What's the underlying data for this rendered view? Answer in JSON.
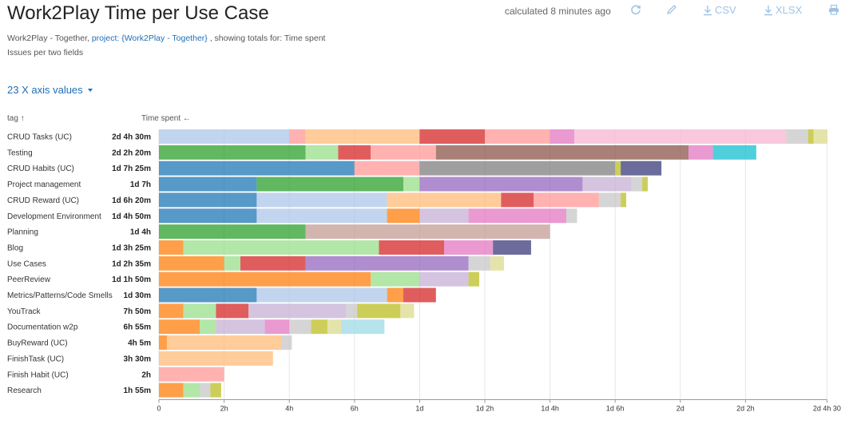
{
  "header": {
    "title": "Work2Play Time per Use Case",
    "calculated": "calculated 8 minutes ago",
    "csv_label": "CSV",
    "xlsx_label": "XLSX"
  },
  "meta": {
    "line1_prefix": "Work2Play - Together, ",
    "line1_link": "project: {Work2Play - Together}",
    "line1_suffix": " , showing totals for: Time spent",
    "line2": "Issues per two fields"
  },
  "axis_values_label": "23 X axis values",
  "columns": {
    "tag": "tag ↑",
    "time": "Time spent ←"
  },
  "icons": [
    "refresh-icon",
    "pencil-icon",
    "download-icon",
    "download-icon",
    "print-icon"
  ],
  "chart_data": {
    "type": "bar",
    "orientation": "horizontal",
    "stacked": true,
    "x_unit": "hours (1d = 8h)",
    "xlim": [
      0,
      20.5
    ],
    "x_ticks": [
      {
        "value": 0,
        "label": "0"
      },
      {
        "value": 2,
        "label": "2h"
      },
      {
        "value": 4,
        "label": "4h"
      },
      {
        "value": 6,
        "label": "6h"
      },
      {
        "value": 8,
        "label": "1d"
      },
      {
        "value": 10,
        "label": "1d 2h"
      },
      {
        "value": 12,
        "label": "1d 4h"
      },
      {
        "value": 14,
        "label": "1d 6h"
      },
      {
        "value": 16,
        "label": "2d"
      },
      {
        "value": 18,
        "label": "2d 2h"
      },
      {
        "value": 20.5,
        "label": "2d 4h 30"
      }
    ],
    "grid": true,
    "rows": [
      {
        "label": "CRUD Tasks (UC)",
        "total": "2d 4h 30m",
        "segments": [
          {
            "value": 4.0,
            "color": "#aec7e8"
          },
          {
            "value": 0.5,
            "color": "#ff9896"
          },
          {
            "value": 3.5,
            "color": "#ffbb78"
          },
          {
            "value": 2.0,
            "color": "#d62728"
          },
          {
            "value": 2.0,
            "color": "#ff9896"
          },
          {
            "value": 0.75,
            "color": "#e377c2"
          },
          {
            "value": 6.5,
            "color": "#f7b6d2"
          },
          {
            "value": 0.67,
            "color": "#c7c7c7"
          },
          {
            "value": 0.17,
            "color": "#bcbd22"
          },
          {
            "value": 0.42,
            "color": "#dbdb8d"
          }
        ]
      },
      {
        "label": "Testing",
        "total": "2d 2h 20m",
        "segments": [
          {
            "value": 4.5,
            "color": "#2ca02c"
          },
          {
            "value": 1.0,
            "color": "#98df8a"
          },
          {
            "value": 1.0,
            "color": "#d62728"
          },
          {
            "value": 2.0,
            "color": "#ff9896"
          },
          {
            "value": 7.75,
            "color": "#8c564b"
          },
          {
            "value": 0.75,
            "color": "#e377c2"
          },
          {
            "value": 1.33,
            "color": "#17becf"
          }
        ]
      },
      {
        "label": "CRUD Habits (UC)",
        "total": "1d 7h 25m",
        "segments": [
          {
            "value": 6.0,
            "color": "#1f77b4"
          },
          {
            "value": 2.0,
            "color": "#ff9896"
          },
          {
            "value": 6.0,
            "color": "#7f7f7f"
          },
          {
            "value": 0.17,
            "color": "#bcbd22"
          },
          {
            "value": 1.25,
            "color": "#393b79"
          }
        ]
      },
      {
        "label": "Project management",
        "total": "1d 7h",
        "segments": [
          {
            "value": 3.0,
            "color": "#1f77b4"
          },
          {
            "value": 4.5,
            "color": "#2ca02c"
          },
          {
            "value": 0.5,
            "color": "#98df8a"
          },
          {
            "value": 5.0,
            "color": "#9467bd"
          },
          {
            "value": 1.5,
            "color": "#c5b0d5"
          },
          {
            "value": 0.33,
            "color": "#c7c7c7"
          },
          {
            "value": 0.17,
            "color": "#bcbd22"
          }
        ]
      },
      {
        "label": "CRUD Reward (UC)",
        "total": "1d 6h 20m",
        "segments": [
          {
            "value": 3.0,
            "color": "#1f77b4"
          },
          {
            "value": 4.0,
            "color": "#aec7e8"
          },
          {
            "value": 3.5,
            "color": "#ffbb78"
          },
          {
            "value": 1.0,
            "color": "#d62728"
          },
          {
            "value": 2.0,
            "color": "#ff9896"
          },
          {
            "value": 0.67,
            "color": "#c7c7c7"
          },
          {
            "value": 0.17,
            "color": "#bcbd22"
          }
        ]
      },
      {
        "label": "Development Environment",
        "total": "1d 4h 50m",
        "segments": [
          {
            "value": 3.0,
            "color": "#1f77b4"
          },
          {
            "value": 4.0,
            "color": "#aec7e8"
          },
          {
            "value": 1.0,
            "color": "#ff7f0e"
          },
          {
            "value": 1.5,
            "color": "#c5b0d5"
          },
          {
            "value": 3.0,
            "color": "#e377c2"
          },
          {
            "value": 0.33,
            "color": "#c7c7c7"
          }
        ]
      },
      {
        "label": "Planning",
        "total": "1d 4h",
        "segments": [
          {
            "value": 4.5,
            "color": "#2ca02c"
          },
          {
            "value": 7.5,
            "color": "#c49c94"
          }
        ]
      },
      {
        "label": "Blog",
        "total": "1d 3h 25m",
        "segments": [
          {
            "value": 0.75,
            "color": "#ff7f0e"
          },
          {
            "value": 6.0,
            "color": "#98df8a"
          },
          {
            "value": 2.0,
            "color": "#d62728"
          },
          {
            "value": 1.5,
            "color": "#e377c2"
          },
          {
            "value": 1.17,
            "color": "#393b79"
          }
        ]
      },
      {
        "label": "Use Cases",
        "total": "1d 2h 35m",
        "segments": [
          {
            "value": 2.0,
            "color": "#ff7f0e"
          },
          {
            "value": 0.5,
            "color": "#98df8a"
          },
          {
            "value": 2.0,
            "color": "#d62728"
          },
          {
            "value": 5.0,
            "color": "#9467bd"
          },
          {
            "value": 0.67,
            "color": "#c7c7c7"
          },
          {
            "value": 0.42,
            "color": "#dbdb8d"
          }
        ]
      },
      {
        "label": "PeerReview",
        "total": "1d 1h 50m",
        "segments": [
          {
            "value": 6.5,
            "color": "#ff7f0e"
          },
          {
            "value": 1.5,
            "color": "#98df8a"
          },
          {
            "value": 1.5,
            "color": "#c5b0d5"
          },
          {
            "value": 0.33,
            "color": "#bcbd22"
          }
        ]
      },
      {
        "label": "Metrics/Patterns/Code Smells",
        "total": "1d 30m",
        "segments": [
          {
            "value": 3.0,
            "color": "#1f77b4"
          },
          {
            "value": 4.0,
            "color": "#aec7e8"
          },
          {
            "value": 0.5,
            "color": "#ff7f0e"
          },
          {
            "value": 1.0,
            "color": "#d62728"
          }
        ]
      },
      {
        "label": "YouTrack",
        "total": "7h 50m",
        "segments": [
          {
            "value": 0.75,
            "color": "#ff7f0e"
          },
          {
            "value": 1.0,
            "color": "#98df8a"
          },
          {
            "value": 1.0,
            "color": "#d62728"
          },
          {
            "value": 3.0,
            "color": "#c5b0d5"
          },
          {
            "value": 0.33,
            "color": "#c7c7c7"
          },
          {
            "value": 1.33,
            "color": "#bcbd22"
          },
          {
            "value": 0.42,
            "color": "#dbdb8d"
          }
        ]
      },
      {
        "label": "Documentation w2p",
        "total": "6h 55m",
        "segments": [
          {
            "value": 1.25,
            "color": "#ff7f0e"
          },
          {
            "value": 0.5,
            "color": "#98df8a"
          },
          {
            "value": 1.5,
            "color": "#c5b0d5"
          },
          {
            "value": 0.75,
            "color": "#e377c2"
          },
          {
            "value": 0.67,
            "color": "#c7c7c7"
          },
          {
            "value": 0.5,
            "color": "#bcbd22"
          },
          {
            "value": 0.42,
            "color": "#dbdb8d"
          },
          {
            "value": 1.33,
            "color": "#9edae5"
          }
        ]
      },
      {
        "label": "BuyReward (UC)",
        "total": "4h 5m",
        "segments": [
          {
            "value": 0.25,
            "color": "#ff7f0e"
          },
          {
            "value": 3.5,
            "color": "#ffbb78"
          },
          {
            "value": 0.33,
            "color": "#c7c7c7"
          }
        ]
      },
      {
        "label": "FinishTask (UC)",
        "total": "3h 30m",
        "segments": [
          {
            "value": 3.5,
            "color": "#ffbb78"
          }
        ]
      },
      {
        "label": "Finish Habit (UC)",
        "total": "2h",
        "segments": [
          {
            "value": 2.0,
            "color": "#ff9896"
          }
        ]
      },
      {
        "label": "Research",
        "total": "1h 55m",
        "segments": [
          {
            "value": 0.75,
            "color": "#ff7f0e"
          },
          {
            "value": 0.5,
            "color": "#98df8a"
          },
          {
            "value": 0.33,
            "color": "#c7c7c7"
          },
          {
            "value": 0.33,
            "color": "#bcbd22"
          }
        ]
      }
    ]
  }
}
